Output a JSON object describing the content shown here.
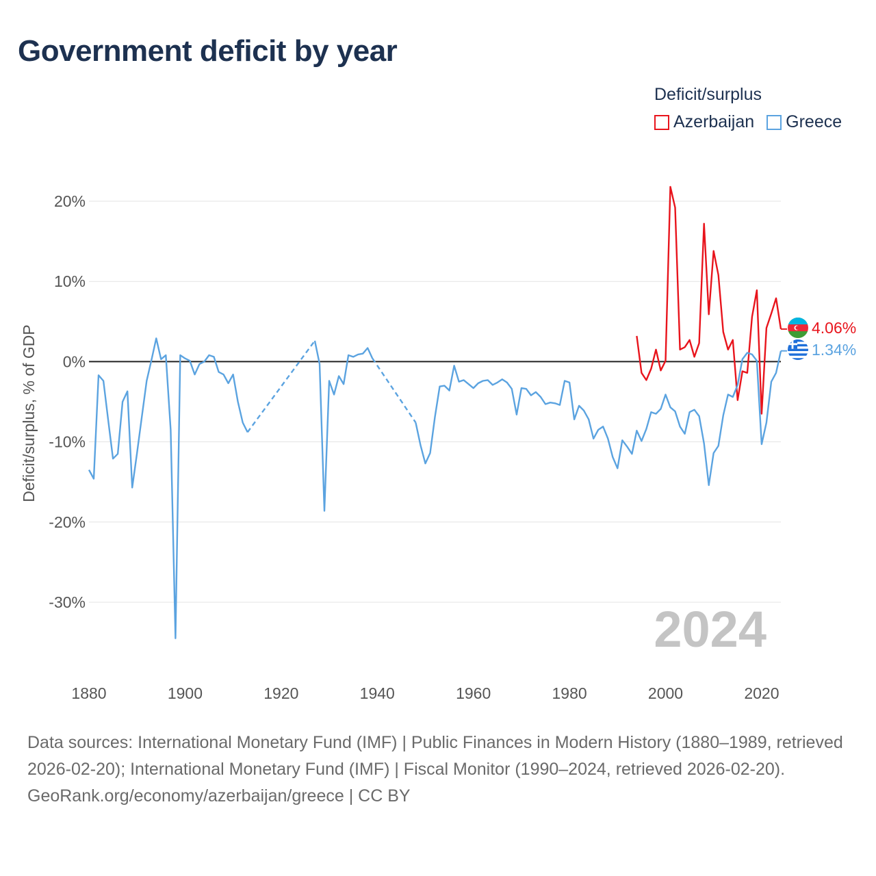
{
  "title": "Government deficit by year",
  "legend": {
    "title": "Deficit/surplus",
    "items": [
      {
        "label": "Azerbaijan",
        "color": "#e8141c"
      },
      {
        "label": "Greece",
        "color": "#5ba3e0"
      }
    ]
  },
  "footer": {
    "sources": "Data sources: International Monetary Fund (IMF) | Public Finances in Modern History (1880–1989, retrieved 2026-02-20); International Monetary Fund (IMF) | Fiscal Monitor (1990–2024, retrieved 2026-02-20).",
    "credit": "GeoRank.org/economy/azerbaijan/greece | CC BY"
  },
  "chart_data": {
    "type": "line",
    "title": "Government deficit by year",
    "xlabel": "",
    "ylabel": "Deficit/surplus, % of GDP",
    "xlim": [
      1880,
      2024
    ],
    "ylim": [
      -36,
      23
    ],
    "xticks": [
      1880,
      1900,
      1920,
      1940,
      1960,
      1980,
      2000,
      2020
    ],
    "yticks": [
      20,
      10,
      0,
      -10,
      -20,
      -30
    ],
    "ytick_labels": [
      "20%",
      "10%",
      "0%",
      "-10%",
      "-20%",
      "-30%"
    ],
    "grid": true,
    "zero_line": true,
    "year_watermark": "2024",
    "series": [
      {
        "name": "Azerbaijan",
        "color": "#e8141c",
        "end_label": "4.06%",
        "flag": "azerbaijan-flag-icon",
        "points": [
          [
            1994,
            3.2
          ],
          [
            1995,
            -1.4
          ],
          [
            1996,
            -2.3
          ],
          [
            1997,
            -0.9
          ],
          [
            1998,
            1.5
          ],
          [
            1999,
            -1.1
          ],
          [
            2000,
            0.1
          ],
          [
            2001,
            21.8
          ],
          [
            2002,
            19.2
          ],
          [
            2003,
            1.5
          ],
          [
            2004,
            1.8
          ],
          [
            2005,
            2.7
          ],
          [
            2006,
            0.6
          ],
          [
            2007,
            2.3
          ],
          [
            2008,
            17.2
          ],
          [
            2009,
            5.9
          ],
          [
            2010,
            13.8
          ],
          [
            2011,
            10.8
          ],
          [
            2012,
            3.7
          ],
          [
            2013,
            1.5
          ],
          [
            2014,
            2.7
          ],
          [
            2015,
            -4.8
          ],
          [
            2016,
            -1.2
          ],
          [
            2017,
            -1.4
          ],
          [
            2018,
            5.6
          ],
          [
            2019,
            8.9
          ],
          [
            2020,
            -6.5
          ],
          [
            2021,
            4.2
          ],
          [
            2022,
            6.0
          ],
          [
            2023,
            7.9
          ],
          [
            2024,
            4.06
          ]
        ],
        "gaps": []
      },
      {
        "name": "Greece",
        "color": "#5ba3e0",
        "end_label": "1.34%",
        "flag": "greece-flag-icon",
        "points": [
          [
            1880,
            -13.5
          ],
          [
            1881,
            -14.6
          ],
          [
            1882,
            -1.7
          ],
          [
            1883,
            -2.4
          ],
          [
            1884,
            -7.3
          ],
          [
            1885,
            -12.1
          ],
          [
            1886,
            -11.5
          ],
          [
            1887,
            -5.0
          ],
          [
            1888,
            -3.7
          ],
          [
            1889,
            -15.7
          ],
          [
            1890,
            -11.4
          ],
          [
            1891,
            -6.9
          ],
          [
            1892,
            -2.4
          ],
          [
            1893,
            0.2
          ],
          [
            1894,
            2.9
          ],
          [
            1895,
            0.3
          ],
          [
            1896,
            0.8
          ],
          [
            1897,
            -8.5
          ],
          [
            1898,
            -34.5
          ],
          [
            1899,
            0.8
          ],
          [
            1900,
            0.4
          ],
          [
            1901,
            0.1
          ],
          [
            1902,
            -1.6
          ],
          [
            1903,
            -0.3
          ],
          [
            1904,
            0.0
          ],
          [
            1905,
            0.8
          ],
          [
            1906,
            0.6
          ],
          [
            1907,
            -1.3
          ],
          [
            1908,
            -1.6
          ],
          [
            1909,
            -2.7
          ],
          [
            1910,
            -1.6
          ],
          [
            1911,
            -5.0
          ],
          [
            1912,
            -7.6
          ],
          [
            1913,
            -8.8
          ],
          [
            1927,
            2.6
          ],
          [
            1928,
            -0.3
          ],
          [
            1929,
            -18.6
          ],
          [
            1930,
            -2.4
          ],
          [
            1931,
            -4.1
          ],
          [
            1932,
            -1.8
          ],
          [
            1933,
            -2.8
          ],
          [
            1934,
            0.8
          ],
          [
            1935,
            0.6
          ],
          [
            1936,
            0.9
          ],
          [
            1937,
            1.0
          ],
          [
            1938,
            1.7
          ],
          [
            1939,
            0.4
          ],
          [
            1948,
            -7.6
          ],
          [
            1949,
            -10.4
          ],
          [
            1950,
            -12.7
          ],
          [
            1951,
            -11.4
          ],
          [
            1952,
            -6.9
          ],
          [
            1953,
            -3.1
          ],
          [
            1954,
            -3.0
          ],
          [
            1955,
            -3.6
          ],
          [
            1956,
            -0.5
          ],
          [
            1957,
            -2.5
          ],
          [
            1958,
            -2.3
          ],
          [
            1959,
            -2.8
          ],
          [
            1960,
            -3.3
          ],
          [
            1961,
            -2.7
          ],
          [
            1962,
            -2.4
          ],
          [
            1963,
            -2.3
          ],
          [
            1964,
            -2.9
          ],
          [
            1965,
            -2.6
          ],
          [
            1966,
            -2.2
          ],
          [
            1967,
            -2.6
          ],
          [
            1968,
            -3.4
          ],
          [
            1969,
            -6.6
          ],
          [
            1970,
            -3.3
          ],
          [
            1971,
            -3.4
          ],
          [
            1972,
            -4.2
          ],
          [
            1973,
            -3.8
          ],
          [
            1974,
            -4.4
          ],
          [
            1975,
            -5.3
          ],
          [
            1976,
            -5.1
          ],
          [
            1977,
            -5.2
          ],
          [
            1978,
            -5.4
          ],
          [
            1979,
            -2.4
          ],
          [
            1980,
            -2.6
          ],
          [
            1981,
            -7.2
          ],
          [
            1982,
            -5.5
          ],
          [
            1983,
            -6.1
          ],
          [
            1984,
            -7.2
          ],
          [
            1985,
            -9.6
          ],
          [
            1986,
            -8.5
          ],
          [
            1987,
            -8.1
          ],
          [
            1988,
            -9.6
          ],
          [
            1989,
            -11.9
          ],
          [
            1990,
            -13.3
          ],
          [
            1991,
            -9.8
          ],
          [
            1992,
            -10.6
          ],
          [
            1993,
            -11.5
          ],
          [
            1994,
            -8.6
          ],
          [
            1995,
            -9.9
          ],
          [
            1996,
            -8.4
          ],
          [
            1997,
            -6.3
          ],
          [
            1998,
            -6.5
          ],
          [
            1999,
            -5.9
          ],
          [
            2000,
            -4.1
          ],
          [
            2001,
            -5.7
          ],
          [
            2002,
            -6.2
          ],
          [
            2003,
            -8.1
          ],
          [
            2004,
            -9.0
          ],
          [
            2005,
            -6.3
          ],
          [
            2006,
            -6.0
          ],
          [
            2007,
            -6.8
          ],
          [
            2008,
            -10.2
          ],
          [
            2009,
            -15.4
          ],
          [
            2010,
            -11.4
          ],
          [
            2011,
            -10.5
          ],
          [
            2012,
            -6.7
          ],
          [
            2013,
            -4.1
          ],
          [
            2014,
            -4.4
          ],
          [
            2015,
            -2.9
          ],
          [
            2016,
            0.3
          ],
          [
            2017,
            1.1
          ],
          [
            2018,
            0.9
          ],
          [
            2019,
            0.1
          ],
          [
            2020,
            -10.3
          ],
          [
            2021,
            -7.6
          ],
          [
            2022,
            -2.5
          ],
          [
            2023,
            -1.4
          ],
          [
            2024,
            1.34
          ]
        ],
        "gaps": [
          [
            1913,
            1927
          ],
          [
            1939,
            1948
          ]
        ]
      }
    ]
  }
}
